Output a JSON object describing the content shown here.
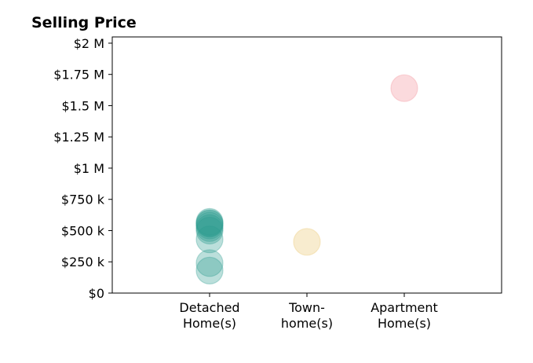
{
  "chart_data": {
    "type": "scatter",
    "title": "Selling Price",
    "xlabel": "",
    "ylabel": "",
    "categories": [
      "Detached\nHome(s)",
      "Town-\nhome(s)",
      "Apartment\nHome(s)"
    ],
    "xlim": [
      -1,
      3
    ],
    "ylim": [
      0,
      2050000
    ],
    "yticks": [
      {
        "value": 0,
        "label": "$0"
      },
      {
        "value": 250000,
        "label": "$250 k"
      },
      {
        "value": 500000,
        "label": "$500 k"
      },
      {
        "value": 750000,
        "label": "$750 k"
      },
      {
        "value": 1000000,
        "label": "$1 M"
      },
      {
        "value": 1250000,
        "label": "$1.25 M"
      },
      {
        "value": 1500000,
        "label": "$1.5 M"
      },
      {
        "value": 1750000,
        "label": "$1.75 M"
      },
      {
        "value": 2000000,
        "label": "$2 M"
      }
    ],
    "grid": false,
    "legend": "none",
    "series": [
      {
        "category": "Detached\nHome(s)",
        "color": "#2a9d8f",
        "values": [
          180000,
          240000,
          430000,
          500000,
          520000,
          540000,
          555000,
          560000,
          570000
        ]
      },
      {
        "category": "Town-\nhome(s)",
        "color": "#e9c46a",
        "values": [
          410000
        ]
      },
      {
        "category": "Apartment\nHome(s)",
        "color": "#f28b95",
        "values": [
          1640000
        ]
      }
    ]
  }
}
